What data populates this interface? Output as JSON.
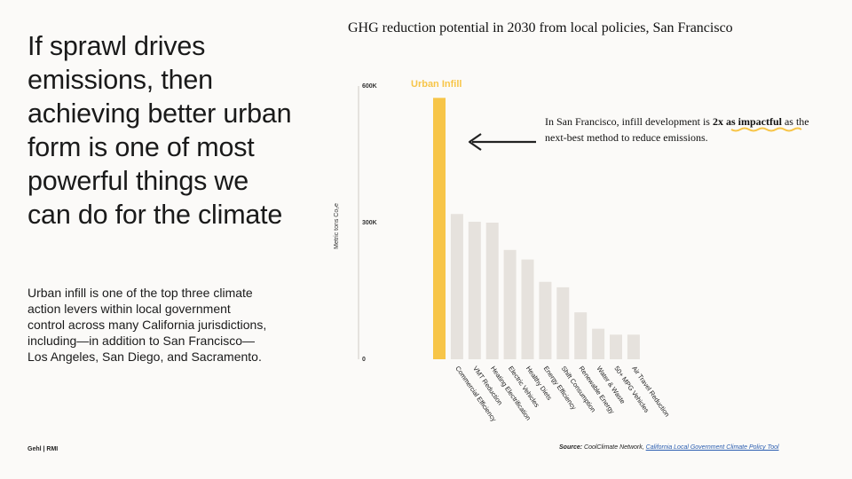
{
  "headline": "If sprawl drives emissions, then achieving better urban form is one of most powerful things we can do for the climate",
  "body_text": "Urban infill is one of the top three climate action levers within local government control across many California jurisdictions, including—in addition to San Francisco—Los Angeles, San Diego, and Sacramento.",
  "footer_logo": "Gehl | RMI",
  "callout": {
    "before": "In San Francisco, infill development is ",
    "emphasis": "2x as impactful",
    "after": " as the next-best method to reduce emissions."
  },
  "source": {
    "label": "Source:",
    "text": " CoolClimate Network, ",
    "link_text": "California Local Government Climate Policy Tool"
  },
  "chart_data": {
    "type": "bar",
    "title": "GHG reduction potential in 2030 from local policies, San Francisco",
    "ylabel": "Metric tons Co₂e",
    "xlabel": "",
    "ylim": [
      0,
      600000
    ],
    "yticks": [
      {
        "value": 0,
        "label": "0"
      },
      {
        "value": 300000,
        "label": "300K"
      },
      {
        "value": 600000,
        "label": "600K"
      }
    ],
    "highlight_label": "Urban Infill",
    "highlight_color": "#f7c548",
    "bar_color": "#e6e2dd",
    "categories": [
      "Urban Infill",
      "Commercial Efficiency",
      "VMT Reduction",
      "Heating Electrification",
      "Electric Vehicles",
      "Healthy Diets",
      "Energy Efficiency",
      "Shift Consumption",
      "Renewable Energy",
      "Water & Waste",
      "50+ MPG Vehicles",
      "Air Travel Reduction"
    ],
    "values": [
      574000,
      319000,
      302000,
      300000,
      240000,
      219000,
      170000,
      158000,
      103000,
      67000,
      54000,
      54000
    ],
    "grid": false,
    "legend": "none"
  }
}
